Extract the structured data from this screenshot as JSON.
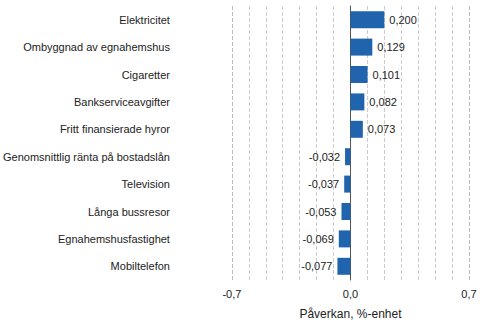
{
  "chart_data": {
    "type": "bar",
    "orientation": "horizontal",
    "categories": [
      "Elektricitet",
      "Ombyggnad av egnahemshus",
      "Cigaretter",
      "Bankserviceavgifter",
      "Fritt finansierade hyror",
      "Genomsnittlig ränta på bostadslån",
      "Television",
      "Långa bussresor",
      "Egnahemshusfastighet",
      "Mobiltelefon"
    ],
    "values": [
      0.2,
      0.129,
      0.101,
      0.082,
      0.073,
      -0.032,
      -0.037,
      -0.053,
      -0.069,
      -0.077
    ],
    "value_labels": [
      "0,200",
      "0,129",
      "0,101",
      "0,082",
      "0,073",
      "-0,032",
      "-0,037",
      "-0,053",
      "-0,069",
      "-0,077"
    ],
    "data_labels": true,
    "color": "#1f64ad",
    "xlabel": "Påverkan, %-enhet",
    "xlim": [
      -0.7,
      0.7
    ],
    "xticks": [
      {
        "value": -0.7,
        "label": "-0,7"
      },
      {
        "value": 0,
        "label": "0,0"
      },
      {
        "value": 0.7,
        "label": "0,7"
      }
    ],
    "grid": true
  }
}
